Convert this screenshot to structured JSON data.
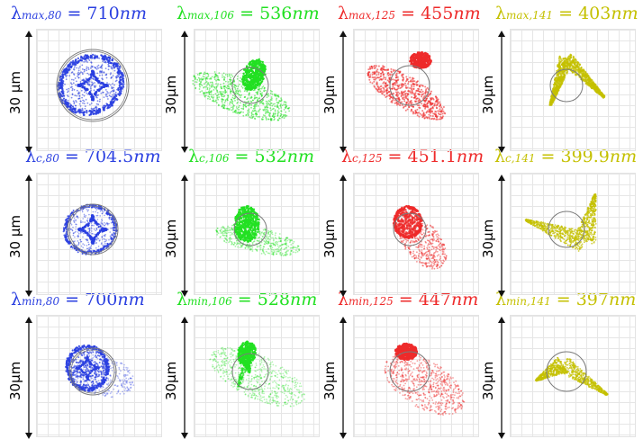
{
  "colors": {
    "ch80": "#2a3fe0",
    "ch106": "#22e022",
    "ch125": "#ee2a2a",
    "ch141": "#c4c000",
    "circle": "#7a7a7a",
    "arrow": "#111111"
  },
  "scale_bar_labels": [
    "30 μm",
    "30μm",
    "30μm",
    "30μm",
    "30 μm",
    "30μm",
    "30μm",
    "30μm",
    "30μm",
    "30μm",
    "30μm",
    "30μm"
  ],
  "rows": [
    {
      "kind": "max",
      "panels": [
        {
          "symbol": "λ",
          "sub": "max,80",
          "eq": " = 710",
          "unit": "nm",
          "color": "#2a3fe0"
        },
        {
          "symbol": "λ",
          "sub": "max,106",
          "eq": " = 536",
          "unit": "nm",
          "color": "#22e022"
        },
        {
          "symbol": "λ",
          "sub": "max,125",
          "eq": " = 455",
          "unit": "nm",
          "color": "#ee2a2a"
        },
        {
          "symbol": "λ",
          "sub": "max,141",
          "eq": " = 403",
          "unit": "nm",
          "color": "#c4c000"
        }
      ]
    },
    {
      "kind": "c",
      "panels": [
        {
          "symbol": "λ",
          "sub": "c,80",
          "eq": " = 704.5",
          "unit": "nm",
          "color": "#2a3fe0"
        },
        {
          "symbol": "λ",
          "sub": "c,106",
          "eq": " = 532",
          "unit": "nm",
          "color": "#22e022"
        },
        {
          "symbol": "λ",
          "sub": "c,125",
          "eq": " = 451.1",
          "unit": "nm",
          "color": "#ee2a2a"
        },
        {
          "symbol": "λ",
          "sub": "c,141",
          "eq": " = 399.9",
          "unit": "nm",
          "color": "#c4c000"
        }
      ]
    },
    {
      "kind": "min",
      "panels": [
        {
          "symbol": "λ",
          "sub": "min,80",
          "eq": " = 700",
          "unit": "nm",
          "color": "#2a3fe0"
        },
        {
          "symbol": "λ",
          "sub": "min,106",
          "eq": " = 528",
          "unit": "nm",
          "color": "#22e022"
        },
        {
          "symbol": "λ",
          "sub": "min,125",
          "eq": " = 447",
          "unit": "nm",
          "color": "#ee2a2a"
        },
        {
          "symbol": "λ",
          "sub": "min,141",
          "eq": " = 397",
          "unit": "nm",
          "color": "#c4c000"
        }
      ]
    }
  ]
}
